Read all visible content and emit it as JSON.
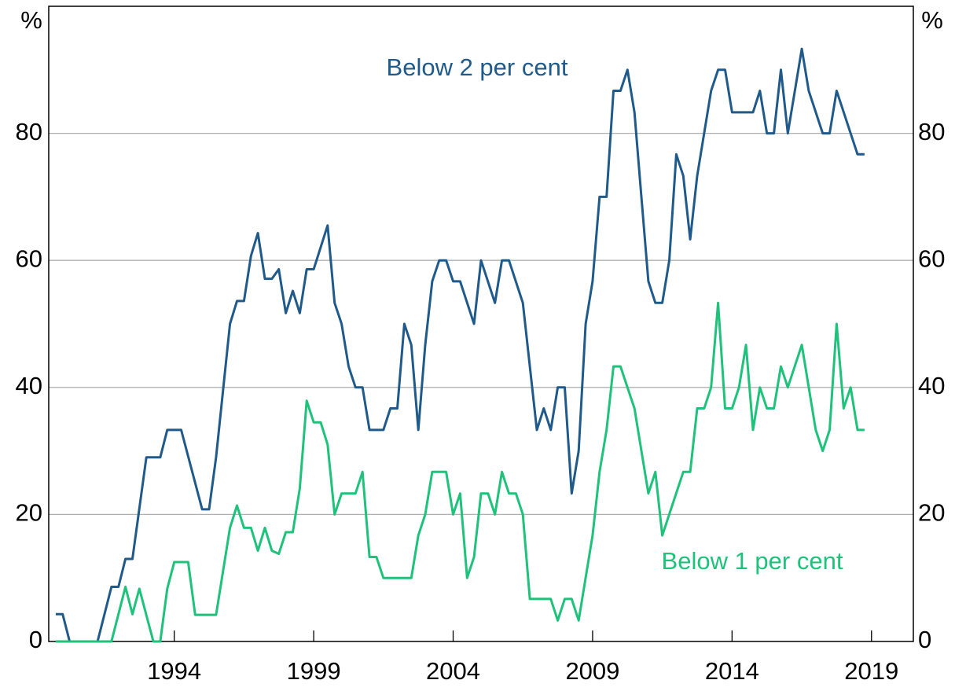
{
  "chart_data": {
    "type": "line",
    "y_unit": "%",
    "y2_unit": "%",
    "xlim": [
      1989.5,
      2020.5
    ],
    "xticks": [
      1994,
      1999,
      2004,
      2009,
      2014,
      2019
    ],
    "ylim": [
      0,
      100
    ],
    "yticks": [
      0,
      20,
      40,
      60,
      80
    ],
    "y2lim": [
      0,
      100
    ],
    "y2ticks": [
      0,
      20,
      40,
      60,
      80
    ],
    "grid": true,
    "series": [
      {
        "name": "Below 2 per cent",
        "color": "#1f5a8a",
        "x": [
          1989.75,
          1990.0,
          1990.25,
          1991.25,
          1991.75,
          1992.0,
          1992.25,
          1992.5,
          1993.0,
          1993.5,
          1993.75,
          1994.25,
          1995.0,
          1995.25,
          1995.5,
          1996.0,
          1996.25,
          1996.5,
          1996.75,
          1997.0,
          1997.25,
          1997.5,
          1997.75,
          1998.0,
          1998.25,
          1998.5,
          1998.75,
          1999.0,
          1999.5,
          1999.75,
          2000.0,
          2000.25,
          2000.5,
          2000.75,
          2001.0,
          2001.5,
          2001.75,
          2002.0,
          2002.25,
          2002.5,
          2002.75,
          2003.0,
          2003.25,
          2003.5,
          2003.75,
          2004.0,
          2004.25,
          2004.75,
          2005.0,
          2005.5,
          2005.75,
          2006.0,
          2006.5,
          2007.0,
          2007.25,
          2007.5,
          2007.75,
          2008.0,
          2008.25,
          2008.5,
          2008.75,
          2009.0,
          2009.25,
          2009.5,
          2009.75,
          2010.0,
          2010.25,
          2010.5,
          2010.75,
          2011.0,
          2011.25,
          2011.5,
          2011.75,
          2012.0,
          2012.25,
          2012.5,
          2012.75,
          2013.25,
          2013.5,
          2013.75,
          2014.0,
          2014.75,
          2015.0,
          2015.25,
          2015.5,
          2015.75,
          2016.0,
          2016.5,
          2016.75,
          2017.25,
          2017.5,
          2017.75,
          2018.5,
          2018.75
        ],
        "values": [
          4.3,
          4.3,
          0,
          0,
          8.6,
          8.6,
          13,
          13,
          29,
          29,
          33.3,
          33.3,
          20.8,
          20.8,
          29,
          50,
          53.6,
          53.6,
          60.7,
          64.3,
          57.1,
          57.1,
          58.6,
          51.7,
          55.2,
          51.7,
          58.6,
          58.6,
          65.5,
          53.3,
          50,
          43.3,
          40,
          40,
          33.3,
          33.3,
          36.7,
          36.7,
          50,
          46.7,
          33.3,
          46.7,
          56.7,
          60,
          60,
          56.7,
          56.7,
          50,
          60,
          53.3,
          60,
          60,
          53.3,
          33.3,
          36.7,
          33.3,
          40,
          40,
          23.3,
          30,
          50,
          56.7,
          70,
          70,
          86.7,
          86.7,
          90,
          83.3,
          70,
          56.7,
          53.3,
          53.3,
          60,
          76.7,
          73.3,
          63.3,
          73.3,
          86.7,
          90,
          90,
          83.3,
          83.3,
          86.7,
          80,
          80,
          90,
          80,
          93.3,
          86.7,
          80,
          80,
          86.7,
          76.7,
          76.7
        ]
      },
      {
        "name": "Below 1 per cent",
        "color": "#1fc27a",
        "x": [
          1989.75,
          1991.75,
          1992.0,
          1992.25,
          1992.5,
          1992.75,
          1993.25,
          1993.5,
          1993.75,
          1994.0,
          1994.5,
          1994.75,
          1995.5,
          1996.0,
          1996.25,
          1996.5,
          1996.75,
          1997.0,
          1997.25,
          1997.5,
          1997.75,
          1998.0,
          1998.25,
          1998.5,
          1998.75,
          1999.0,
          1999.25,
          1999.5,
          1999.75,
          2000.0,
          2000.5,
          2000.75,
          2001.0,
          2001.25,
          2001.5,
          2002.5,
          2002.75,
          2003.0,
          2003.25,
          2003.75,
          2004.0,
          2004.25,
          2004.5,
          2004.75,
          2005.0,
          2005.25,
          2005.5,
          2005.75,
          2006.0,
          2006.25,
          2006.5,
          2006.75,
          2007.5,
          2007.75,
          2008.0,
          2008.25,
          2008.5,
          2009.0,
          2009.25,
          2009.5,
          2009.75,
          2010.0,
          2010.5,
          2011.0,
          2011.25,
          2011.5,
          2012.25,
          2012.5,
          2012.75,
          2013.0,
          2013.25,
          2013.5,
          2013.75,
          2014.0,
          2014.25,
          2014.5,
          2014.75,
          2015.0,
          2015.25,
          2015.5,
          2015.75,
          2016.0,
          2016.5,
          2017.0,
          2017.25,
          2017.5,
          2017.75,
          2018.0,
          2018.25,
          2018.5,
          2018.75
        ],
        "values": [
          0,
          0,
          4.3,
          8.6,
          4.3,
          8.3,
          0,
          0,
          8.3,
          12.5,
          12.5,
          4.2,
          4.2,
          17.9,
          21.4,
          17.9,
          17.9,
          14.3,
          17.9,
          14.3,
          13.8,
          17.2,
          17.2,
          24.1,
          37.9,
          34.5,
          34.5,
          31,
          20,
          23.3,
          23.3,
          26.7,
          13.3,
          13.3,
          10,
          10,
          16.7,
          20,
          26.7,
          26.7,
          20,
          23.3,
          10,
          13.3,
          23.3,
          23.3,
          20,
          26.7,
          23.3,
          23.3,
          20,
          6.7,
          6.7,
          3.3,
          6.7,
          6.7,
          3.3,
          16.7,
          26.7,
          33.3,
          43.3,
          43.3,
          36.7,
          23.3,
          26.7,
          16.7,
          26.7,
          26.7,
          36.7,
          36.7,
          40,
          53.3,
          36.7,
          36.7,
          40,
          46.7,
          33.3,
          40,
          36.7,
          36.7,
          43.3,
          40,
          46.7,
          33.3,
          30,
          33.3,
          50,
          36.7,
          40,
          33.3,
          33.3
        ]
      }
    ]
  }
}
